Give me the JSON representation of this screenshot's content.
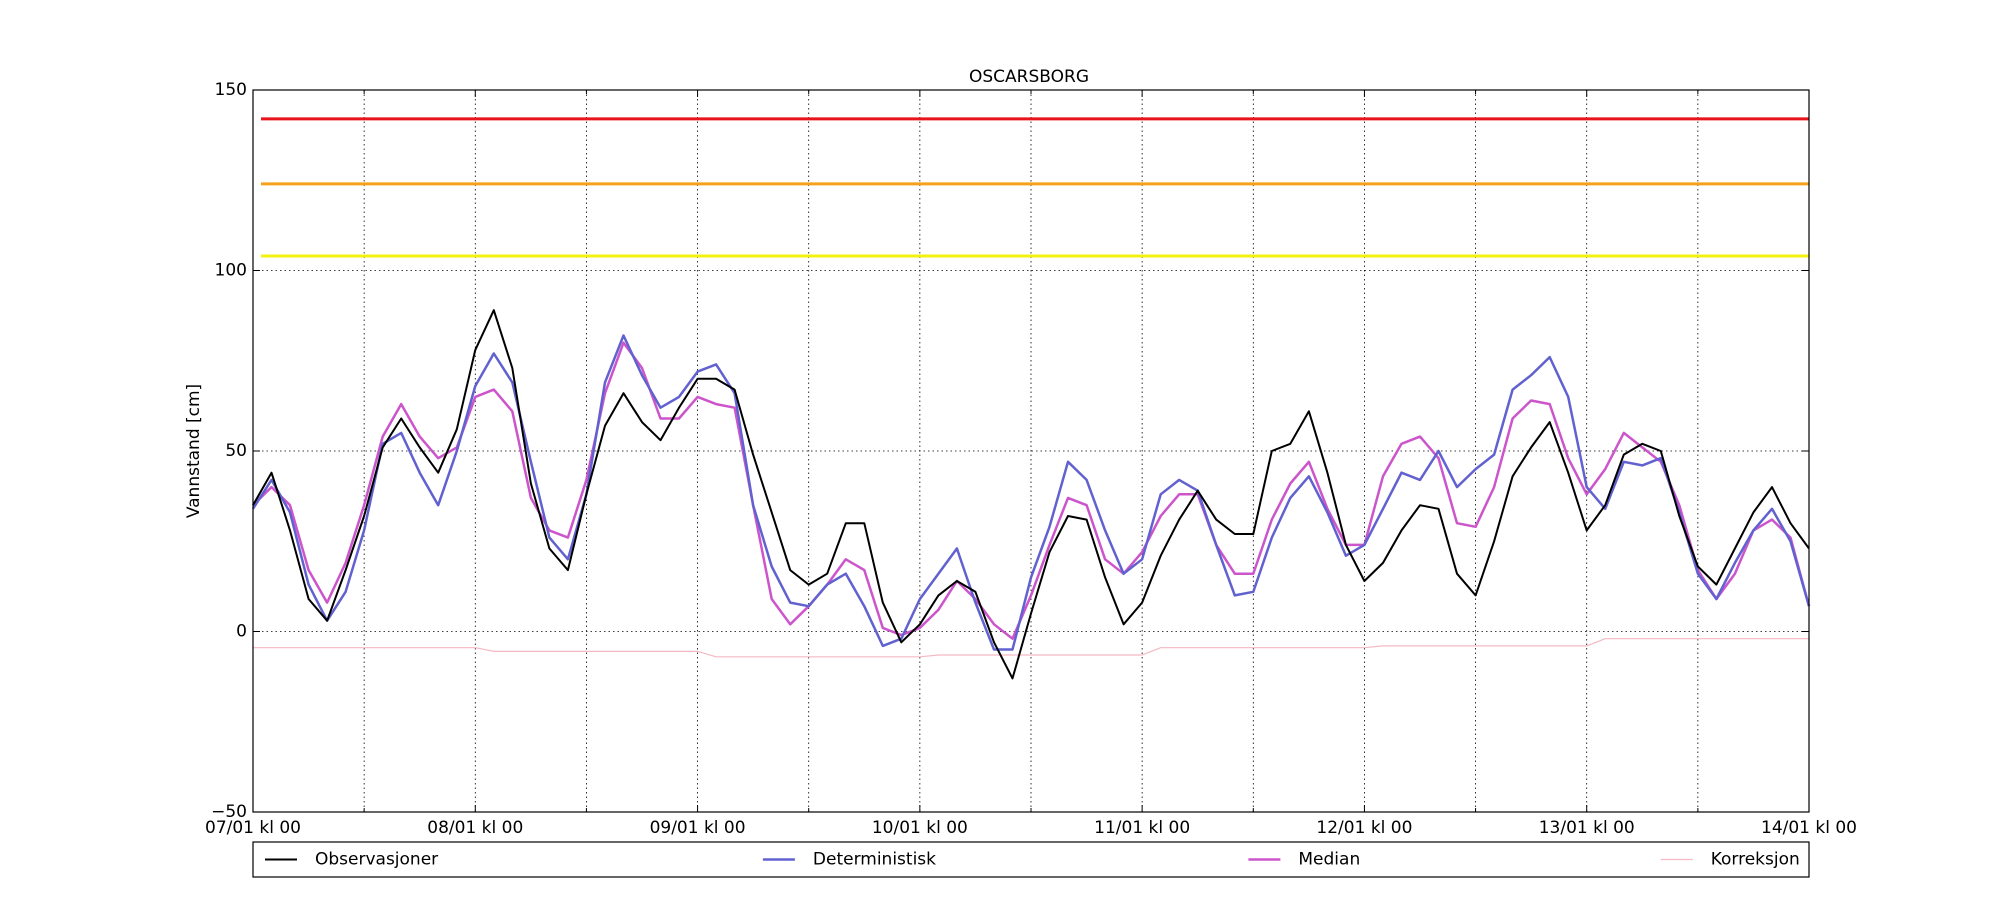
{
  "chart_data": {
    "type": "line",
    "title": "OSCARSBORG",
    "ylabel": "Vannstand [cm]",
    "x": [
      0,
      2,
      4,
      6,
      8,
      10,
      12,
      14,
      16,
      18,
      20,
      22,
      24,
      26,
      28,
      30,
      32,
      34,
      36,
      38,
      40,
      42,
      44,
      46,
      48,
      50,
      52,
      54,
      56,
      58,
      60,
      62,
      64,
      66,
      68,
      70,
      72,
      74,
      76,
      78,
      80,
      82,
      84,
      86,
      88,
      90,
      92,
      94,
      96,
      98,
      100,
      102,
      104,
      106,
      108,
      110,
      112,
      114,
      116,
      118,
      120,
      122,
      124,
      126,
      128,
      130,
      132,
      134,
      136,
      138,
      140,
      142,
      144,
      146,
      148,
      150,
      152,
      154,
      156,
      158,
      160,
      162,
      164,
      166,
      168
    ],
    "series": [
      {
        "name": "Observasjoner",
        "color": "#000000",
        "width": 2,
        "values": [
          35,
          44,
          28,
          9,
          3,
          17,
          32,
          51,
          59,
          51,
          44,
          56,
          78,
          89,
          73,
          41,
          23,
          17,
          38,
          57,
          66,
          58,
          53,
          62,
          70,
          70,
          67,
          49,
          33,
          17,
          13,
          16,
          30,
          30,
          8,
          -3,
          2,
          10,
          14,
          11,
          -3,
          -13,
          5,
          22,
          32,
          31,
          15,
          2,
          8,
          21,
          31,
          39,
          31,
          27,
          27,
          50,
          52,
          61,
          44,
          24,
          14,
          19,
          28,
          35,
          34,
          16,
          10,
          25,
          43,
          51,
          58,
          44,
          28,
          35,
          49,
          52,
          50,
          32,
          18,
          13,
          23,
          33,
          40,
          30,
          23
        ]
      },
      {
        "name": "Deterministisk",
        "color": "#6161d0",
        "width": 2.5,
        "values": [
          34,
          42,
          33,
          13,
          3,
          11,
          28,
          52,
          55,
          44,
          35,
          50,
          68,
          77,
          69,
          47,
          26,
          20,
          38,
          69,
          82,
          71,
          62,
          65,
          72,
          74,
          66,
          35,
          18,
          8,
          7,
          13,
          16,
          7,
          -4,
          -2,
          9,
          16,
          23,
          8,
          -5,
          -5,
          15,
          29,
          47,
          42,
          28,
          16,
          20,
          38,
          42,
          39,
          24,
          10,
          11,
          26,
          37,
          43,
          33,
          21,
          24,
          34,
          44,
          42,
          50,
          40,
          45,
          49,
          67,
          71,
          76,
          65,
          40,
          34,
          47,
          46,
          48,
          33,
          16,
          9,
          19,
          28,
          34,
          25,
          7
        ]
      },
      {
        "name": "Median",
        "color": "#cc55cc",
        "width": 2.5,
        "values": [
          35,
          40,
          35,
          17,
          8,
          19,
          35,
          54,
          63,
          54,
          48,
          51,
          65,
          67,
          61,
          37,
          28,
          26,
          42,
          66,
          80,
          73,
          59,
          59,
          65,
          63,
          62,
          35,
          9,
          2,
          7,
          13,
          20,
          17,
          1,
          -1,
          1,
          6,
          14,
          9,
          2,
          -2,
          10,
          24,
          37,
          35,
          20,
          16,
          22,
          32,
          38,
          38,
          24,
          16,
          16,
          31,
          41,
          47,
          34,
          24,
          24,
          43,
          52,
          54,
          48,
          30,
          29,
          40,
          59,
          64,
          63,
          48,
          38,
          45,
          55,
          51,
          47,
          35,
          17,
          9,
          16,
          28,
          31,
          26,
          7
        ]
      },
      {
        "name": "Korreksjon",
        "color": "#f5b8c4",
        "width": 1.2,
        "values": [
          -4.5,
          -4.5,
          -4.5,
          -4.5,
          -4.5,
          -4.5,
          -4.5,
          -4.5,
          -4.5,
          -4.5,
          -4.5,
          -4.5,
          -4.5,
          -5.5,
          -5.5,
          -5.5,
          -5.5,
          -5.5,
          -5.5,
          -5.5,
          -5.5,
          -5.5,
          -5.5,
          -5.5,
          -5.5,
          -7,
          -7,
          -7,
          -7,
          -7,
          -7,
          -7,
          -7,
          -7,
          -7,
          -7,
          -7,
          -6.5,
          -6.5,
          -6.5,
          -6.5,
          -6.5,
          -6.5,
          -6.5,
          -6.5,
          -6.5,
          -6.5,
          -6.5,
          -6.5,
          -4.5,
          -4.5,
          -4.5,
          -4.5,
          -4.5,
          -4.5,
          -4.5,
          -4.5,
          -4.5,
          -4.5,
          -4.5,
          -4.5,
          -4,
          -4,
          -4,
          -4,
          -4,
          -4,
          -4,
          -4,
          -4,
          -4,
          -4,
          -4,
          -2,
          -2,
          -2,
          -2,
          -2,
          -2,
          -2,
          -2,
          -2,
          -2,
          -2,
          -2
        ]
      }
    ],
    "hlines": [
      {
        "value": 142,
        "color": "#e8141c"
      },
      {
        "value": 124,
        "color": "#f7a01b"
      },
      {
        "value": 104,
        "color": "#f2f20e"
      }
    ],
    "xlim": [
      0,
      168
    ],
    "xticks": [
      {
        "value": 0,
        "label": "07/01 kl 00"
      },
      {
        "value": 24,
        "label": "08/01 kl 00"
      },
      {
        "value": 48,
        "label": "09/01 kl 00"
      },
      {
        "value": 72,
        "label": "10/01 kl 00"
      },
      {
        "value": 96,
        "label": "11/01 kl 00"
      },
      {
        "value": 120,
        "label": "12/01 kl 00"
      },
      {
        "value": 144,
        "label": "13/01 kl 00"
      },
      {
        "value": 168,
        "label": "14/01 kl 00"
      }
    ],
    "xminorticks": [
      12,
      36,
      60,
      84,
      108,
      132,
      156
    ],
    "ylim": [
      -50,
      150
    ],
    "yticks": [
      {
        "value": -50,
        "label": "−50"
      },
      0,
      50,
      100,
      150
    ],
    "grid": true,
    "legend": "bottom"
  }
}
